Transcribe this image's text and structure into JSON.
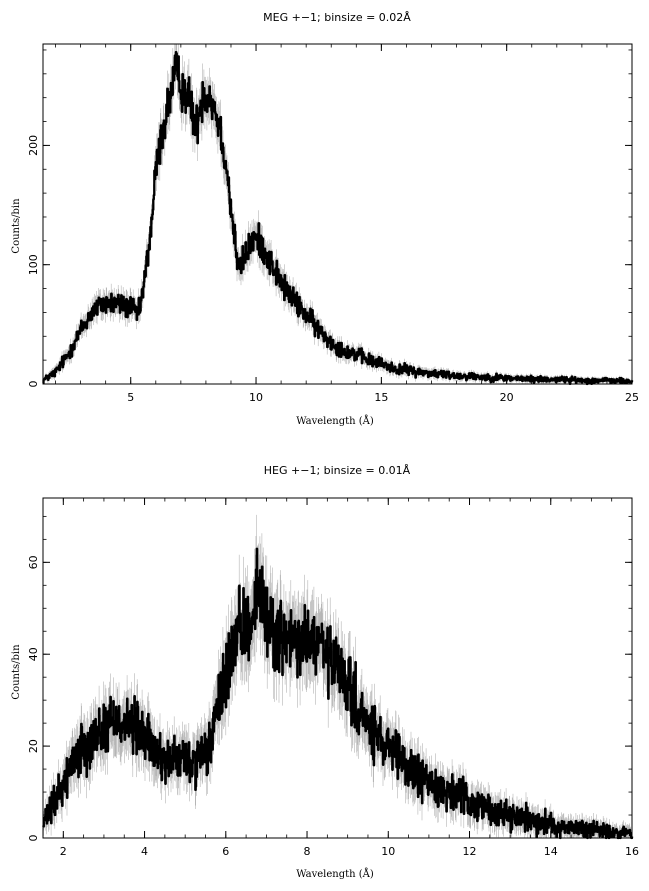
{
  "chart_data": [
    {
      "type": "line",
      "title": "MEG +−1; binsize = 0.02Å",
      "xlabel": "Wavelength (Å)",
      "ylabel": "Counts/bin",
      "xlim": [
        1.5,
        25
      ],
      "ylim": [
        0,
        285
      ],
      "xticks": [
        5,
        10,
        15,
        20,
        25
      ],
      "yticks": [
        0,
        100,
        200
      ],
      "grid": false,
      "binsize": 0.02,
      "series": [
        {
          "style": "thick-black-line-with-gray-error-bars",
          "x": [
            1.5,
            2.0,
            2.5,
            3.0,
            3.5,
            4.0,
            4.5,
            5.0,
            5.3,
            5.5,
            5.8,
            6.0,
            6.2,
            6.5,
            6.8,
            7.0,
            7.3,
            7.6,
            7.9,
            8.2,
            8.5,
            8.8,
            9.0,
            9.3,
            9.6,
            9.9,
            10.2,
            10.5,
            11.0,
            11.5,
            12.0,
            12.5,
            13.0,
            13.5,
            14.0,
            14.5,
            15.0,
            15.5,
            16.0,
            16.5,
            17.0,
            17.5,
            18.0,
            19.0,
            20.0,
            21.0,
            22.0,
            23.0,
            24.0,
            25.0
          ],
          "y": [
            3,
            10,
            25,
            45,
            62,
            68,
            67,
            64,
            58,
            80,
            130,
            180,
            205,
            235,
            262,
            250,
            240,
            215,
            245,
            240,
            220,
            185,
            145,
            95,
            110,
            122,
            118,
            105,
            85,
            70,
            58,
            45,
            35,
            28,
            25,
            20,
            17,
            13,
            12,
            10,
            9,
            8,
            7,
            6,
            5,
            4,
            4,
            3,
            3,
            2
          ]
        }
      ]
    },
    {
      "type": "line",
      "title": "HEG +−1; binsize = 0.01Å",
      "xlabel": "Wavelength (Å)",
      "ylabel": "Counts/bin",
      "xlim": [
        1.5,
        16
      ],
      "ylim": [
        0,
        74
      ],
      "xticks": [
        2,
        4,
        6,
        8,
        10,
        12,
        14,
        16
      ],
      "yticks": [
        0,
        20,
        40,
        60
      ],
      "grid": false,
      "binsize": 0.01,
      "series": [
        {
          "style": "thick-black-line-with-gray-error-bars",
          "x": [
            1.5,
            1.8,
            2.0,
            2.3,
            2.6,
            3.0,
            3.3,
            3.6,
            4.0,
            4.3,
            4.6,
            5.0,
            5.3,
            5.6,
            5.8,
            6.0,
            6.2,
            6.4,
            6.6,
            6.8,
            7.0,
            7.3,
            7.6,
            8.0,
            8.3,
            8.6,
            9.0,
            9.3,
            9.6,
            10.0,
            10.5,
            11.0,
            11.5,
            12.0,
            12.5,
            13.0,
            13.5,
            14.0,
            14.5,
            15.0,
            15.5,
            16.0
          ],
          "y": [
            3,
            8,
            12,
            18,
            21,
            24,
            26,
            25,
            22,
            18,
            17,
            17,
            16,
            20,
            28,
            36,
            42,
            45,
            47,
            55,
            48,
            44,
            42,
            43,
            42,
            38,
            33,
            27,
            23,
            19,
            15,
            12,
            10,
            8,
            6,
            5,
            4,
            3,
            2,
            2,
            1,
            1
          ]
        }
      ]
    }
  ]
}
